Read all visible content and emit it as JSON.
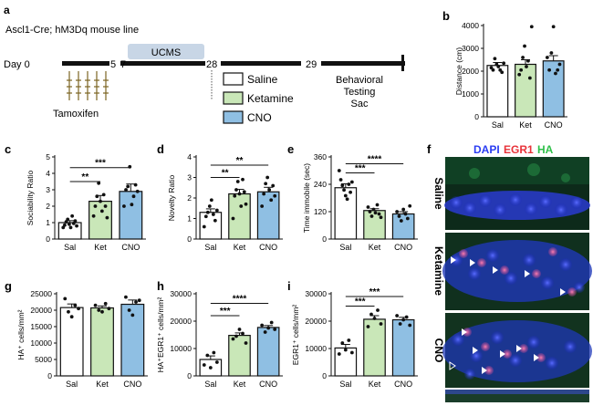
{
  "panel_a": {
    "letter": "a",
    "mouse_line": "Ascl1-Cre; hM3Dq mouse line",
    "day_label": "Day 0",
    "ticks": [
      "5",
      "7",
      "28",
      "29"
    ],
    "ucms": "UCMS",
    "tamoxifen": "Tamoxifen",
    "legend": [
      {
        "label": "Saline",
        "color": "#ffffff"
      },
      {
        "label": "Ketamine",
        "color": "#c9e7b8"
      },
      {
        "label": "CNO",
        "color": "#8fbfe3"
      }
    ],
    "behavior": [
      "Behavioral",
      "Testing",
      "Sac"
    ]
  },
  "panel_f": {
    "letter": "f",
    "header": [
      {
        "text": "DAPI",
        "color": "#2b3df2"
      },
      {
        "text": "EGR1",
        "color": "#e8333a"
      },
      {
        "text": "HA",
        "color": "#2fc04a"
      }
    ],
    "rows": [
      "Saline",
      "Ketamine",
      "CNO"
    ]
  },
  "colors": {
    "saline": "#ffffff",
    "ketamine": "#c9e7b8",
    "cno": "#8fbfe3"
  },
  "chart_data": [
    {
      "id": "b",
      "letter": "b",
      "type": "bar",
      "ylabel": "Distance (cm)",
      "categories": [
        "Sal",
        "Ket",
        "CNO"
      ],
      "values": [
        2250,
        2300,
        2450
      ],
      "errors": [
        130,
        200,
        230
      ],
      "ylim": [
        0,
        4000
      ],
      "ticks": [
        0,
        1000,
        2000,
        3000,
        4000
      ],
      "points": [
        [
          2150,
          2050,
          2550,
          2300,
          2200,
          2050,
          1950,
          2350
        ],
        [
          1850,
          2050,
          2600,
          3100,
          2200,
          2450,
          1700,
          3950
        ],
        [
          2600,
          2050,
          2800,
          3950,
          1900,
          2050,
          2300
        ]
      ],
      "sig": []
    },
    {
      "id": "c",
      "letter": "c",
      "type": "bar",
      "ylabel": "Sociability Ratio",
      "categories": [
        "Sal",
        "Ket",
        "CNO"
      ],
      "values": [
        1.0,
        2.3,
        2.9
      ],
      "errors": [
        0.12,
        0.35,
        0.45
      ],
      "ylim": [
        0,
        5
      ],
      "ticks": [
        0,
        1,
        2,
        3,
        4,
        5
      ],
      "points": [
        [
          0.7,
          0.85,
          1.05,
          1.2,
          0.9,
          0.7,
          1.4,
          0.95,
          1.1,
          0.8
        ],
        [
          1.4,
          2.0,
          2.6,
          3.4,
          2.3,
          1.7,
          2.7,
          2.0,
          1.3
        ],
        [
          2.0,
          3.0,
          3.2,
          4.4,
          2.1,
          2.6,
          3.3,
          2.9
        ]
      ],
      "sig": [
        {
          "label": "**",
          "from": 0,
          "to": 1,
          "y": 3.5
        },
        {
          "label": "***",
          "from": 0,
          "to": 2,
          "y": 4.35
        }
      ]
    },
    {
      "id": "d",
      "letter": "d",
      "type": "bar",
      "ylabel": "Novelty Ratio",
      "categories": [
        "Sal",
        "Ket",
        "CNO"
      ],
      "values": [
        1.3,
        2.2,
        2.3
      ],
      "errors": [
        0.17,
        0.22,
        0.22
      ],
      "ylim": [
        0,
        4
      ],
      "ticks": [
        0,
        1,
        2,
        3,
        4
      ],
      "points": [
        [
          0.6,
          1.1,
          1.3,
          1.6,
          1.9,
          1.2,
          0.9,
          1.4
        ],
        [
          1.0,
          2.1,
          2.4,
          2.8,
          2.2,
          1.6,
          2.9,
          2.3,
          1.7
        ],
        [
          1.6,
          2.2,
          2.7,
          3.0,
          2.4,
          1.9,
          2.6,
          2.1
        ]
      ],
      "sig": [
        {
          "label": "**",
          "from": 0,
          "to": 1,
          "y": 3.0
        },
        {
          "label": "**",
          "from": 0,
          "to": 2,
          "y": 3.6
        }
      ]
    },
    {
      "id": "e",
      "letter": "e",
      "type": "bar",
      "ylabel": "Time immobile (sec)",
      "categories": [
        "Sal",
        "Ket",
        "CNO"
      ],
      "values": [
        225,
        125,
        110
      ],
      "errors": [
        17,
        8,
        10
      ],
      "ylim": [
        0,
        360
      ],
      "ticks": [
        0,
        120,
        240,
        360
      ],
      "points": [
        [
          300,
          260,
          235,
          215,
          190,
          175,
          240,
          205,
          250
        ],
        [
          140,
          120,
          100,
          130,
          115,
          150,
          110,
          95
        ],
        [
          120,
          100,
          80,
          130,
          110,
          90,
          145
        ]
      ],
      "sig": [
        {
          "label": "***",
          "from": 0,
          "to": 1,
          "y": 290
        },
        {
          "label": "****",
          "from": 0,
          "to": 2,
          "y": 330
        }
      ]
    },
    {
      "id": "g",
      "letter": "g",
      "type": "bar",
      "ylabel": "HA⁺ cells/mm²",
      "categories": [
        "Sal",
        "Ket",
        "CNO"
      ],
      "values": [
        20800,
        20700,
        21800
      ],
      "errors": [
        1100,
        600,
        1300
      ],
      "ylim": [
        0,
        25000
      ],
      "ticks": [
        0,
        5000,
        10000,
        15000,
        20000,
        25000
      ],
      "points": [
        [
          23500,
          19500,
          18000,
          21500,
          20500
        ],
        [
          21500,
          20000,
          19500,
          22000,
          20500
        ],
        [
          24000,
          20000,
          18500,
          22500,
          23000
        ]
      ],
      "sig": []
    },
    {
      "id": "h",
      "letter": "h",
      "type": "bar",
      "ylabel": "HA⁺EGR1⁺ cells/mm²",
      "categories": [
        "Sal",
        "Ket",
        "CNO"
      ],
      "values": [
        6000,
        14800,
        17700
      ],
      "errors": [
        1300,
        900,
        700
      ],
      "ylim": [
        0,
        30000
      ],
      "ticks": [
        0,
        10000,
        20000,
        30000
      ],
      "points": [
        [
          4000,
          7500,
          3000,
          8500,
          5000
        ],
        [
          13500,
          14500,
          17000,
          15500,
          12000
        ],
        [
          18500,
          16000,
          17500,
          19500,
          17000
        ]
      ],
      "sig": [
        {
          "label": "***",
          "from": 0,
          "to": 1,
          "y": 22000
        },
        {
          "label": "****",
          "from": 0,
          "to": 2,
          "y": 26500
        }
      ]
    },
    {
      "id": "i",
      "letter": "i",
      "type": "bar",
      "ylabel": "EGR1⁺ cells/mm²",
      "categories": [
        "Sal",
        "Ket",
        "CNO"
      ],
      "values": [
        10200,
        20700,
        20500
      ],
      "errors": [
        1300,
        1300,
        900
      ],
      "ylim": [
        0,
        30000
      ],
      "ticks": [
        0,
        10000,
        20000,
        30000
      ],
      "points": [
        [
          8000,
          12000,
          9500,
          13000,
          8500
        ],
        [
          18000,
          22500,
          21000,
          24000,
          19000
        ],
        [
          22000,
          19000,
          20500,
          21500,
          18500
        ]
      ],
      "sig": [
        {
          "label": "***",
          "from": 0,
          "to": 1,
          "y": 25500
        },
        {
          "label": "***",
          "from": 0,
          "to": 2,
          "y": 29000
        }
      ]
    }
  ]
}
